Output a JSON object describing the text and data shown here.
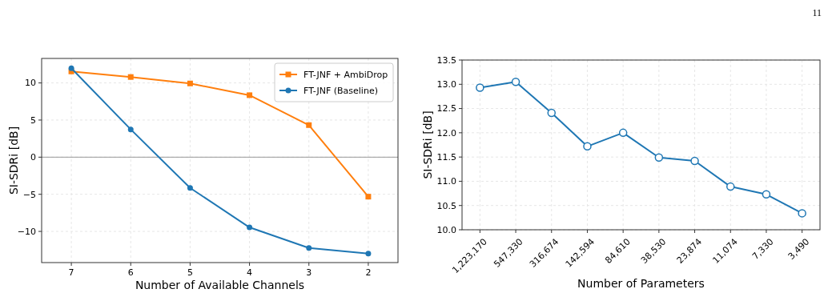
{
  "chart_data": [
    {
      "type": "line",
      "xlabel": "Number of Available Channels",
      "ylabel": "SI-SDRi [dB]",
      "x": [
        7,
        6,
        5,
        4,
        3,
        2
      ],
      "xlim": [
        7.5,
        1.5
      ],
      "xticks": [
        7,
        6,
        5,
        4,
        3,
        2
      ],
      "ylim": [
        -14.2,
        13.3
      ],
      "yticks": [
        -10,
        -5,
        0,
        5,
        10
      ],
      "grid": true,
      "legend": "top right",
      "series": [
        {
          "name": "FT-JNF + AmbiDrop",
          "color": "#ff7f0e",
          "marker": "square",
          "values": [
            11.55,
            10.8,
            9.93,
            8.35,
            4.32,
            -5.32
          ]
        },
        {
          "name": "FT-JNF (Baseline)",
          "color": "#1f77b4",
          "marker": "circle",
          "values": [
            11.98,
            3.74,
            -4.14,
            -9.46,
            -12.23,
            -12.99
          ]
        }
      ],
      "ref_lines": [
        {
          "axis": "y",
          "value": 0,
          "color": "#999999"
        }
      ]
    },
    {
      "type": "line",
      "xlabel": "Number of Parameters",
      "ylabel": "SI-SDRi [dB]",
      "categories": [
        "1,223,170",
        "547,330",
        "316,674",
        "142,594",
        "84,610",
        "38,530",
        "23,874",
        "11,074",
        "7,330",
        "3,490"
      ],
      "ylim": [
        10,
        13.5
      ],
      "yticks": [
        {
          "value": 10,
          "label": "10.0"
        },
        {
          "value": 10.5,
          "label": "10.5"
        },
        {
          "value": 11,
          "label": "11.0"
        },
        {
          "value": 11.5,
          "label": "11.5"
        },
        {
          "value": 12,
          "label": "12.0"
        },
        {
          "value": 12.5,
          "label": "12.5"
        },
        {
          "value": 13,
          "label": "13.0"
        },
        {
          "value": 13.5,
          "label": "13.5"
        }
      ],
      "grid": true,
      "marker": "circle",
      "series": [
        {
          "color": "#1f77b4",
          "values": [
            12.93,
            13.05,
            12.41,
            11.72,
            12.0,
            11.49,
            11.42,
            10.89,
            10.73,
            10.34
          ]
        }
      ],
      "annotations": [
        "11"
      ]
    }
  ]
}
